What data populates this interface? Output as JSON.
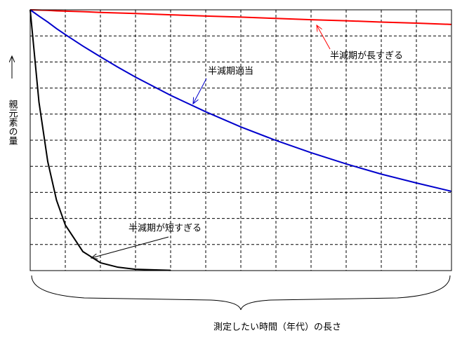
{
  "chart_data": {
    "type": "line",
    "y_label": "親元素の量",
    "x_label": "測定したい時間（年代）の長さ",
    "annotations": [
      "半減期が長すぎる",
      "半減期適当",
      "半減期が短すぎる"
    ],
    "x": [
      0,
      0.25,
      0.5,
      0.75,
      1,
      1.5,
      2,
      2.5,
      3,
      4,
      5,
      6,
      7,
      8,
      9,
      10,
      11,
      12
    ],
    "series": [
      {
        "color": "#ff0000",
        "values": [
          10,
          9.99,
          9.98,
          9.96,
          9.95,
          9.93,
          9.9,
          9.88,
          9.86,
          9.81,
          9.76,
          9.72,
          9.67,
          9.62,
          9.58,
          9.53,
          9.49,
          9.44
        ]
      },
      {
        "color": "#0000cc",
        "values": [
          10,
          9.76,
          9.53,
          9.28,
          9.05,
          8.61,
          8.2,
          7.8,
          7.42,
          6.72,
          6.09,
          5.51,
          4.99,
          4.52,
          4.09,
          3.7,
          3.36,
          3.04
        ]
      },
      {
        "color": "#000000",
        "values": [
          10,
          6.46,
          4.18,
          2.7,
          1.75,
          0.73,
          0.3,
          0.13,
          0.05,
          0.01,
          null,
          null,
          null,
          null,
          null,
          null,
          null,
          null
        ]
      }
    ],
    "xlim": [
      0,
      12
    ],
    "ylim": [
      0,
      10
    ],
    "xticks": [
      1,
      2,
      3,
      4,
      5,
      6,
      7,
      8,
      9,
      10,
      11
    ],
    "yticks": [
      1,
      2,
      3,
      4,
      5,
      6,
      7,
      8,
      9
    ],
    "grid": true
  }
}
